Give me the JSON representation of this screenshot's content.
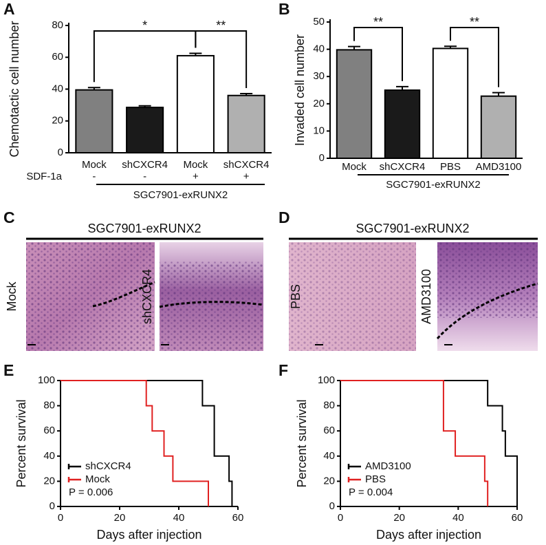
{
  "chart_data": [
    {
      "panel": "A",
      "type": "bar",
      "ylabel": "Chemotactic cell number",
      "categories": [
        "Mock",
        "shCXCR4",
        "Mock",
        "shCXCR4"
      ],
      "row_label": "SDF-1a",
      "row": [
        "-",
        "-",
        "+",
        "+"
      ],
      "group_label": "SGC7901-exRUNX2",
      "values": [
        39.5,
        28.5,
        61,
        36
      ],
      "errors": [
        1.5,
        1,
        1.5,
        1.2
      ],
      "colors": [
        "#808080",
        "#1a1a1a",
        "#ffffff",
        "#b0b0b0"
      ],
      "ylim": [
        0,
        80
      ],
      "yticks": [
        0,
        20,
        40,
        60,
        80
      ],
      "brackets": [
        {
          "pair": [
            0,
            2
          ],
          "label": "*"
        },
        {
          "pair": [
            2,
            3
          ],
          "label": "**"
        }
      ]
    },
    {
      "panel": "B",
      "type": "bar",
      "ylabel": "Invaded cell number",
      "categories": [
        "Mock",
        "shCXCR4",
        "PBS",
        "AMD3100"
      ],
      "group_label": "SGC7901-exRUNX2",
      "values": [
        39.8,
        25,
        40.3,
        22.8
      ],
      "errors": [
        1.2,
        1.3,
        0.8,
        1.3
      ],
      "colors": [
        "#808080",
        "#1a1a1a",
        "#ffffff",
        "#b0b0b0"
      ],
      "ylim": [
        0,
        50
      ],
      "yticks": [
        0,
        10,
        20,
        30,
        40,
        50
      ],
      "brackets": [
        {
          "pair": [
            0,
            1
          ],
          "label": "**"
        },
        {
          "pair": [
            2,
            3
          ],
          "label": "**"
        }
      ]
    },
    {
      "panel": "E",
      "type": "survival",
      "ylabel": "Percent survival",
      "xlabel": "Days after injection",
      "xlim": [
        0,
        60
      ],
      "xticks": [
        0,
        20,
        40,
        60
      ],
      "ylim": [
        0,
        100
      ],
      "yticks": [
        0,
        20,
        40,
        60,
        80,
        100
      ],
      "legend": "lower left",
      "annotation": "P = 0.006",
      "series": [
        {
          "name": "shCXCR4",
          "color": "#000000",
          "x": [
            0,
            48,
            52,
            57,
            58
          ],
          "values": [
            100,
            80,
            40,
            20,
            0
          ]
        },
        {
          "name": "Mock",
          "color": "#e02020",
          "x": [
            0,
            29,
            31,
            35,
            38,
            50
          ],
          "values": [
            100,
            80,
            60,
            40,
            20,
            0
          ]
        }
      ]
    },
    {
      "panel": "F",
      "type": "survival",
      "ylabel": "Percent survival",
      "xlabel": "Days after injection",
      "xlim": [
        0,
        60
      ],
      "xticks": [
        0,
        20,
        40,
        60
      ],
      "ylim": [
        0,
        100
      ],
      "yticks": [
        0,
        20,
        40,
        60,
        80,
        100
      ],
      "legend": "lower left",
      "annotation": "P = 0.004",
      "series": [
        {
          "name": "AMD3100",
          "color": "#000000",
          "x": [
            0,
            50,
            55,
            56,
            60
          ],
          "values": [
            100,
            80,
            60,
            40,
            0
          ]
        },
        {
          "name": "PBS",
          "color": "#e02020",
          "x": [
            0,
            35,
            39,
            49,
            50
          ],
          "values": [
            100,
            60,
            40,
            20,
            0
          ]
        }
      ]
    }
  ],
  "images": [
    {
      "panel": "C",
      "group_label": "SGC7901-exRUNX2",
      "labels": [
        "Mock",
        "shCXCR4"
      ]
    },
    {
      "panel": "D",
      "group_label": "SGC7901-exRUNX2",
      "labels": [
        "PBS",
        "AMD3100"
      ]
    }
  ]
}
